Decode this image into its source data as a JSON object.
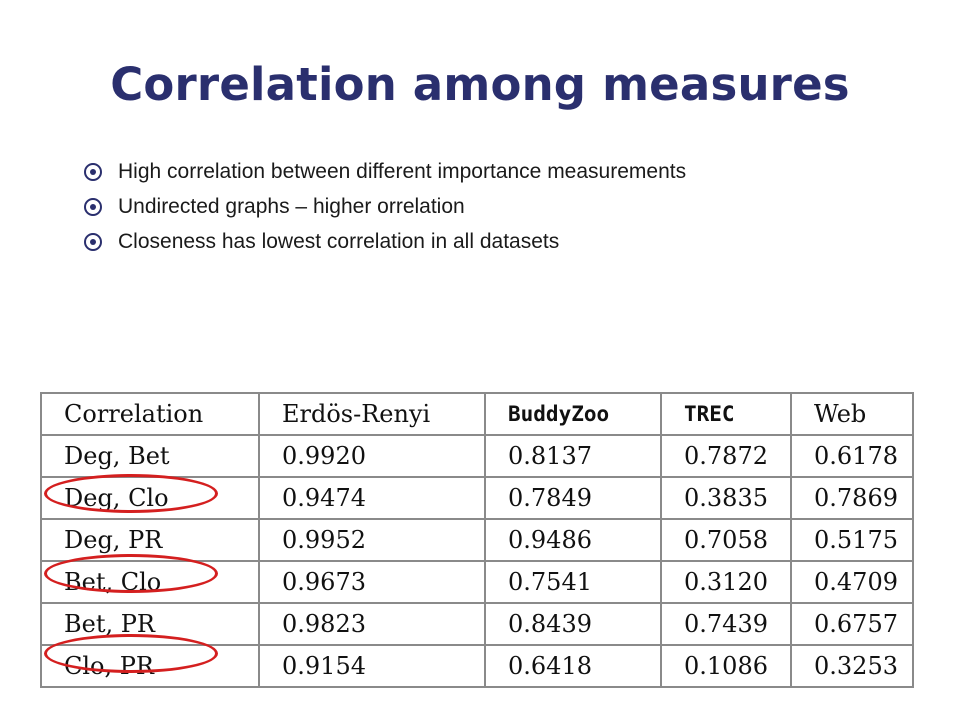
{
  "title": "Correlation among measures",
  "bullets": [
    "High correlation between different importance measurements",
    "Undirected graphs – higher orrelation",
    "Closeness has lowest correlation in all datasets"
  ],
  "table": {
    "headers": [
      "Correlation",
      "Erdös-Renyi",
      "BuddyZoo",
      "TREC",
      "Web"
    ],
    "rows": [
      [
        "Deg, Bet",
        "0.9920",
        "0.8137",
        "0.7872",
        "0.6178"
      ],
      [
        "Deg, Clo",
        "0.9474",
        "0.7849",
        "0.3835",
        "0.7869"
      ],
      [
        "Deg, PR",
        "0.9952",
        "0.9486",
        "0.7058",
        "0.5175"
      ],
      [
        "Bet, Clo",
        "0.9673",
        "0.7541",
        "0.3120",
        "0.4709"
      ],
      [
        "Bet, PR",
        "0.9823",
        "0.8439",
        "0.7439",
        "0.6757"
      ],
      [
        "Clo, PR",
        "0.9154",
        "0.6418",
        "0.1086",
        "0.3253"
      ]
    ],
    "highlighted_rows": [
      "Deg, Clo",
      "Bet, Clo",
      "Clo, PR"
    ]
  },
  "colors": {
    "title": "#2a2f6e",
    "highlight": "#d41f1f"
  }
}
